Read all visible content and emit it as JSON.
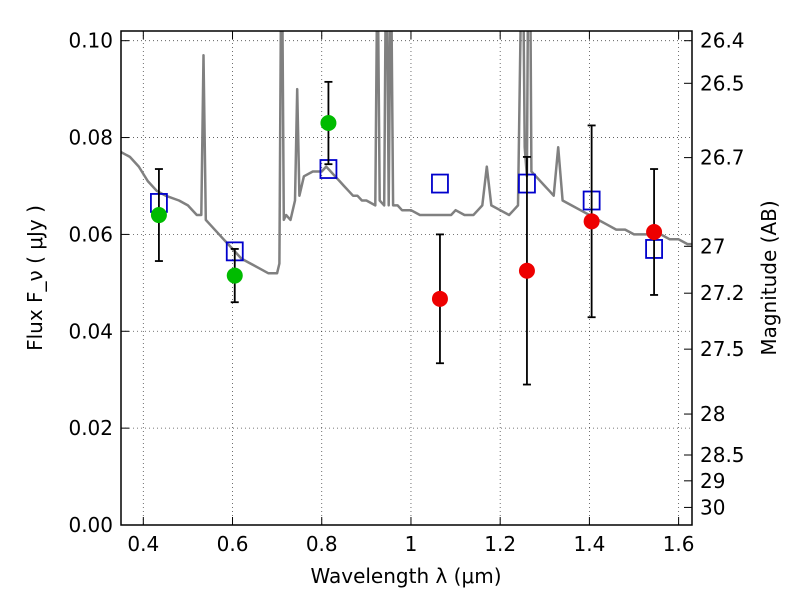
{
  "chart_data": {
    "type": "scatter",
    "title": "",
    "xlabel": "Wavelength  λ (μm)",
    "ylabel": "Flux  F_ν  ( μJy )",
    "y2label": "Magnitude (AB)",
    "xlim": [
      0.35,
      1.63
    ],
    "ylim": [
      0.0,
      0.102
    ],
    "xticks": [
      0.4,
      0.6,
      0.8,
      1.0,
      1.2,
      1.4,
      1.6
    ],
    "xtick_labels": [
      "0.4",
      "0.6",
      "0.8",
      "1",
      "1.2",
      "1.4",
      "1.6"
    ],
    "yticks": [
      0.0,
      0.02,
      0.04,
      0.06,
      0.08,
      0.1
    ],
    "ytick_labels": [
      "0.00",
      "0.02",
      "0.04",
      "0.06",
      "0.08",
      "0.10"
    ],
    "y2ticks": [
      26.4,
      26.5,
      26.7,
      27,
      27.2,
      27.5,
      28,
      28.5,
      29,
      30
    ],
    "y2tick_labels": [
      "26.4",
      "26.5",
      "26.7",
      "27",
      "27.2",
      "27.5",
      "28",
      "28.5",
      "29",
      "30"
    ],
    "grid": true,
    "colors": {
      "model": "#808080",
      "green": "#00bb00",
      "red": "#ee0000",
      "box": "#0000cc",
      "errorbar": "#000000"
    },
    "series": [
      {
        "kind": "line",
        "points": [
          [
            0.35,
            0.077
          ],
          [
            0.37,
            0.076
          ],
          [
            0.39,
            0.074
          ],
          [
            0.41,
            0.071
          ],
          [
            0.43,
            0.069
          ],
          [
            0.45,
            0.068
          ],
          [
            0.48,
            0.067
          ],
          [
            0.5,
            0.066
          ],
          [
            0.52,
            0.064
          ],
          [
            0.53,
            0.064
          ],
          [
            0.535,
            0.097
          ],
          [
            0.54,
            0.063
          ],
          [
            0.55,
            0.062
          ],
          [
            0.58,
            0.059
          ],
          [
            0.6,
            0.057
          ],
          [
            0.62,
            0.055
          ],
          [
            0.64,
            0.054
          ],
          [
            0.66,
            0.053
          ],
          [
            0.68,
            0.052
          ],
          [
            0.7,
            0.052
          ],
          [
            0.705,
            0.054
          ],
          [
            0.71,
            0.13
          ],
          [
            0.715,
            0.063
          ],
          [
            0.72,
            0.064
          ],
          [
            0.73,
            0.063
          ],
          [
            0.74,
            0.067
          ],
          [
            0.745,
            0.09
          ],
          [
            0.75,
            0.068
          ],
          [
            0.76,
            0.072
          ],
          [
            0.78,
            0.073
          ],
          [
            0.8,
            0.073
          ],
          [
            0.81,
            0.074
          ],
          [
            0.82,
            0.073
          ],
          [
            0.83,
            0.072
          ],
          [
            0.84,
            0.071
          ],
          [
            0.85,
            0.07
          ],
          [
            0.86,
            0.069
          ],
          [
            0.87,
            0.068
          ],
          [
            0.88,
            0.068
          ],
          [
            0.89,
            0.067
          ],
          [
            0.9,
            0.067
          ],
          [
            0.92,
            0.066
          ],
          [
            0.925,
            0.12
          ],
          [
            0.93,
            0.067
          ],
          [
            0.94,
            0.066
          ],
          [
            0.945,
            0.13
          ],
          [
            0.95,
            0.066
          ],
          [
            0.955,
            0.12
          ],
          [
            0.96,
            0.066
          ],
          [
            0.97,
            0.066
          ],
          [
            0.98,
            0.065
          ],
          [
            1.0,
            0.065
          ],
          [
            1.02,
            0.064
          ],
          [
            1.05,
            0.064
          ],
          [
            1.07,
            0.064
          ],
          [
            1.09,
            0.064
          ],
          [
            1.1,
            0.065
          ],
          [
            1.12,
            0.064
          ],
          [
            1.14,
            0.064
          ],
          [
            1.15,
            0.065
          ],
          [
            1.16,
            0.066
          ],
          [
            1.17,
            0.074
          ],
          [
            1.18,
            0.066
          ],
          [
            1.2,
            0.065
          ],
          [
            1.22,
            0.064
          ],
          [
            1.23,
            0.065
          ],
          [
            1.24,
            0.066
          ],
          [
            1.25,
            0.13
          ],
          [
            1.255,
            0.078
          ],
          [
            1.26,
            0.072
          ],
          [
            1.265,
            0.15
          ],
          [
            1.27,
            0.073
          ],
          [
            1.28,
            0.072
          ],
          [
            1.3,
            0.07
          ],
          [
            1.31,
            0.069
          ],
          [
            1.32,
            0.068
          ],
          [
            1.33,
            0.078
          ],
          [
            1.34,
            0.067
          ],
          [
            1.36,
            0.066
          ],
          [
            1.38,
            0.065
          ],
          [
            1.4,
            0.064
          ],
          [
            1.42,
            0.063
          ],
          [
            1.44,
            0.062
          ],
          [
            1.46,
            0.061
          ],
          [
            1.48,
            0.061
          ],
          [
            1.5,
            0.06
          ],
          [
            1.52,
            0.06
          ],
          [
            1.54,
            0.06
          ],
          [
            1.56,
            0.06
          ],
          [
            1.58,
            0.059
          ],
          [
            1.6,
            0.059
          ],
          [
            1.62,
            0.058
          ],
          [
            1.63,
            0.058
          ]
        ]
      },
      {
        "kind": "points",
        "x": [
          0.435,
          0.605,
          0.815
        ],
        "y": [
          0.064,
          0.0515,
          0.083
        ],
        "yerr": [
          0.0095,
          0.0055,
          0.0085
        ]
      },
      {
        "kind": "points",
        "x": [
          1.065,
          1.26,
          1.405,
          1.545
        ],
        "y": [
          0.0467,
          0.0525,
          0.0627,
          0.0605
        ],
        "yerr": [
          0.0133,
          0.0235,
          0.0198,
          0.013
        ]
      },
      {
        "kind": "boxes",
        "x": [
          0.435,
          0.605,
          0.815,
          1.065,
          1.26,
          1.405,
          1.545
        ],
        "y": [
          0.0665,
          0.0565,
          0.0735,
          0.0705,
          0.0705,
          0.067,
          0.057
        ]
      }
    ]
  }
}
